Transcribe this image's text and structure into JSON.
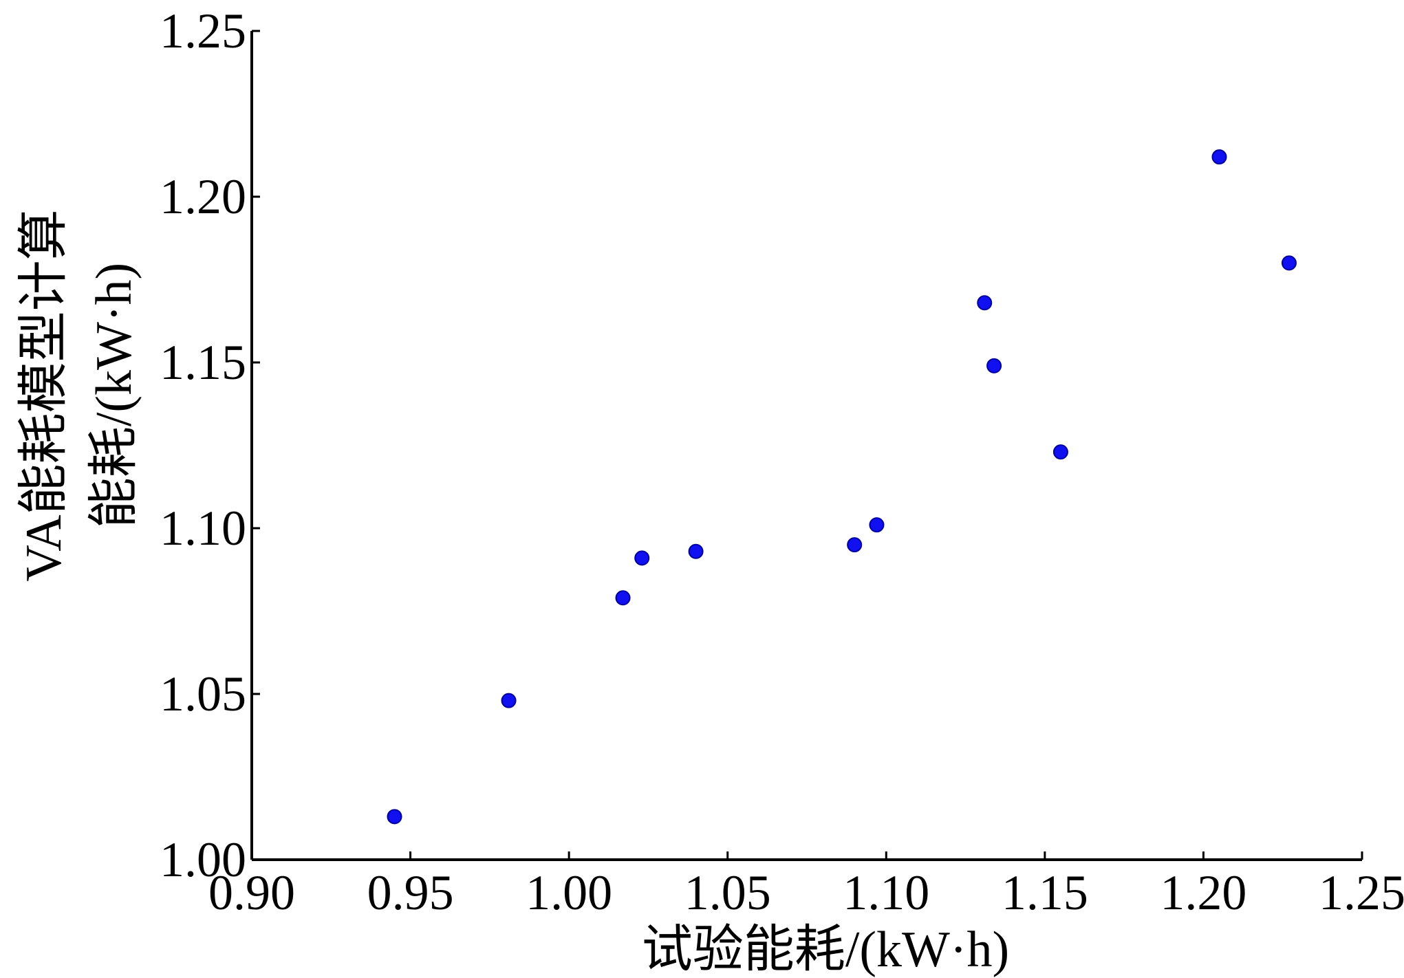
{
  "chart_data": {
    "type": "scatter",
    "xlabel": "试验能耗/(kW·h)",
    "ylabel_lines": [
      "VA能耗模型计算",
      "能耗/(kW·h)"
    ],
    "xlim": [
      0.9,
      1.25
    ],
    "ylim": [
      1.0,
      1.25
    ],
    "xticks": [
      "0.90",
      "0.95",
      "1.00",
      "1.05",
      "1.10",
      "1.15",
      "1.20",
      "1.25"
    ],
    "yticks": [
      "1.00",
      "1.05",
      "1.10",
      "1.15",
      "1.20",
      "1.25"
    ],
    "grid": false,
    "point_color": "#1010f0",
    "points": [
      {
        "x": 0.945,
        "y": 1.013
      },
      {
        "x": 0.981,
        "y": 1.048
      },
      {
        "x": 1.017,
        "y": 1.079
      },
      {
        "x": 1.023,
        "y": 1.091
      },
      {
        "x": 1.04,
        "y": 1.093
      },
      {
        "x": 1.09,
        "y": 1.095
      },
      {
        "x": 1.097,
        "y": 1.101
      },
      {
        "x": 1.131,
        "y": 1.168
      },
      {
        "x": 1.134,
        "y": 1.149
      },
      {
        "x": 1.155,
        "y": 1.123
      },
      {
        "x": 1.205,
        "y": 1.212
      },
      {
        "x": 1.227,
        "y": 1.18
      }
    ]
  }
}
